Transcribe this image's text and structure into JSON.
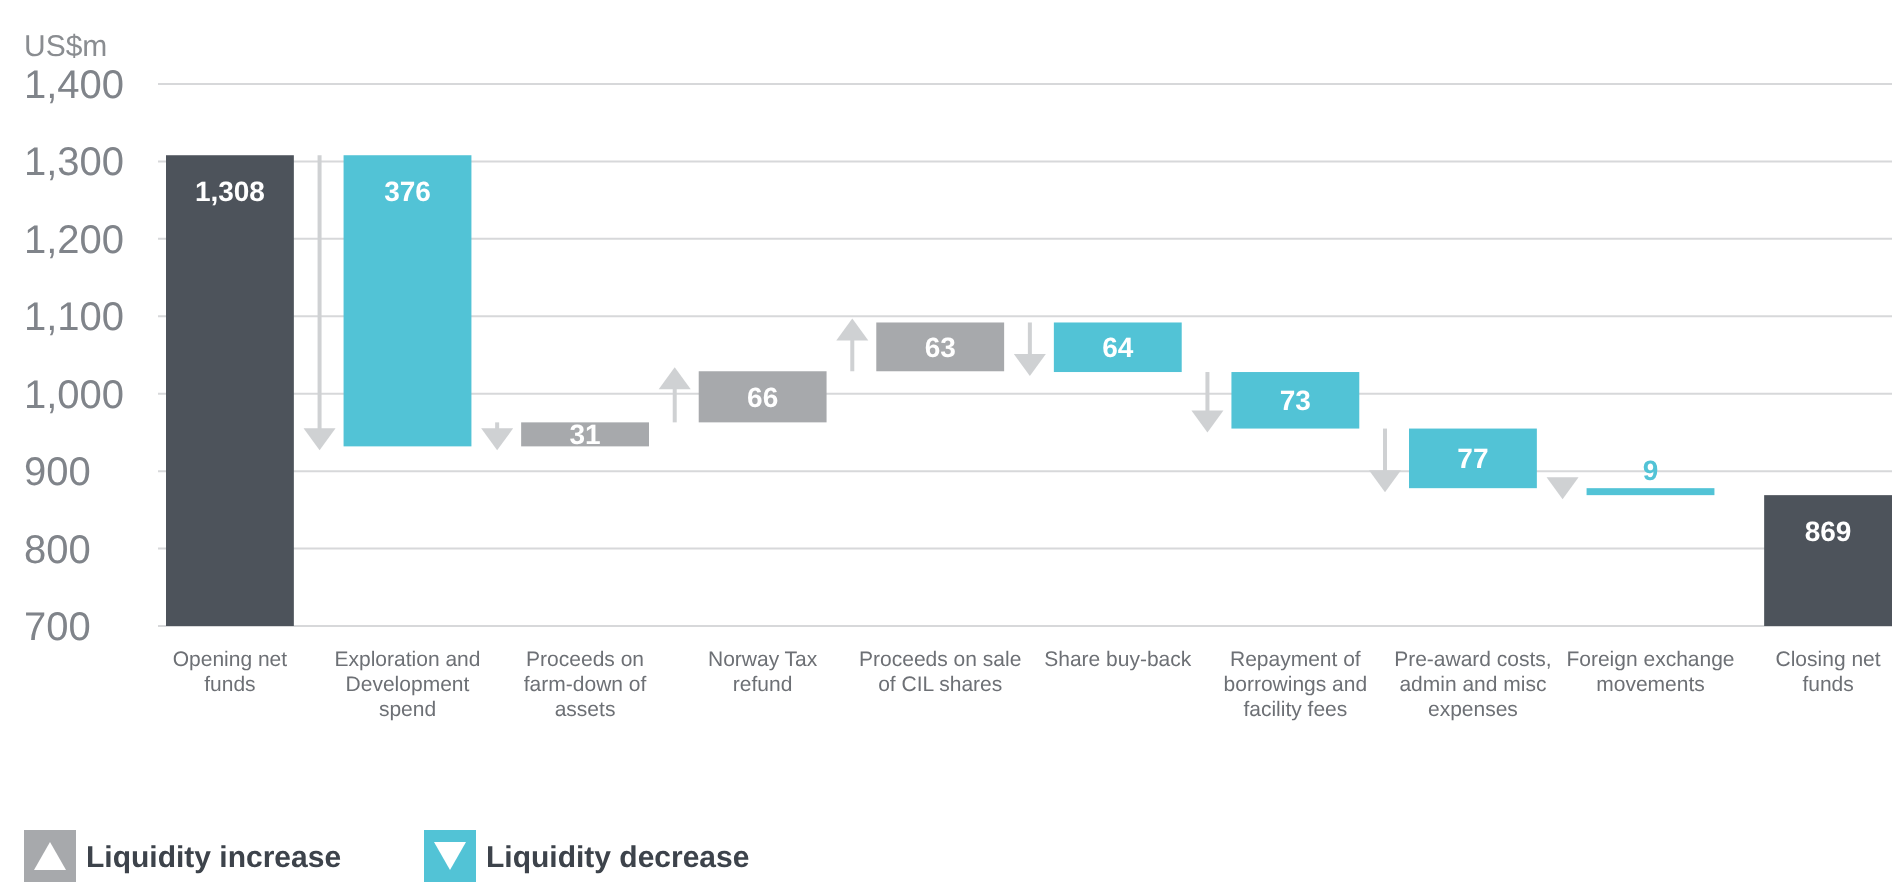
{
  "chart_data": {
    "type": "bar",
    "ylabel": "US$m",
    "categories": [
      "Opening net funds",
      "Exploration and Development spend",
      "Proceeds on farm-down of assets",
      "Norway Tax refund",
      "Proceeds on sale of CIL shares",
      "Share buy-back",
      "Repayment of borrowings and facility fees",
      "Pre-award costs, admin and misc expenses",
      "Foreign exchange movements",
      "Closing net funds"
    ],
    "series": [
      {
        "name": "Liquidity increase",
        "color": "#a7a9ac",
        "values": [
          null,
          null,
          31,
          66,
          63,
          null,
          null,
          null,
          null,
          null
        ],
        "base": [
          null,
          null,
          932,
          963,
          1029,
          null,
          null,
          null,
          null,
          null
        ],
        "value_labels": [
          null,
          null,
          "31",
          "66",
          "63",
          null,
          null,
          null,
          null,
          null
        ]
      },
      {
        "name": "Liquidity decrease",
        "color": "#52c3d6",
        "values": [
          null,
          376,
          null,
          null,
          null,
          64,
          73,
          77,
          9,
          null
        ],
        "base": [
          null,
          932,
          null,
          null,
          null,
          1028,
          955,
          878,
          869,
          null
        ],
        "value_labels": [
          null,
          "376",
          null,
          null,
          null,
          "64",
          "73",
          "77",
          "9",
          null
        ]
      },
      {
        "color": "#4d535b",
        "values": [
          1308,
          null,
          null,
          null,
          null,
          null,
          null,
          null,
          null,
          869
        ],
        "base": [
          0,
          null,
          null,
          null,
          null,
          null,
          null,
          null,
          null,
          0
        ],
        "value_labels": [
          "1,308",
          null,
          null,
          null,
          null,
          null,
          null,
          null,
          null,
          "869"
        ]
      }
    ],
    "ylim": [
      700,
      1400
    ],
    "yticks": [
      {
        "value": 700,
        "label": "700"
      },
      {
        "value": 800,
        "label": "800"
      },
      {
        "value": 900,
        "label": "900"
      },
      {
        "value": 1000,
        "label": "1,000"
      },
      {
        "value": 1100,
        "label": "1,100"
      },
      {
        "value": 1200,
        "label": "1,200"
      },
      {
        "value": 1300,
        "label": "1,300"
      },
      {
        "value": 1400,
        "label": "1,400"
      }
    ],
    "grid": "y",
    "legend": "bottom left"
  }
}
